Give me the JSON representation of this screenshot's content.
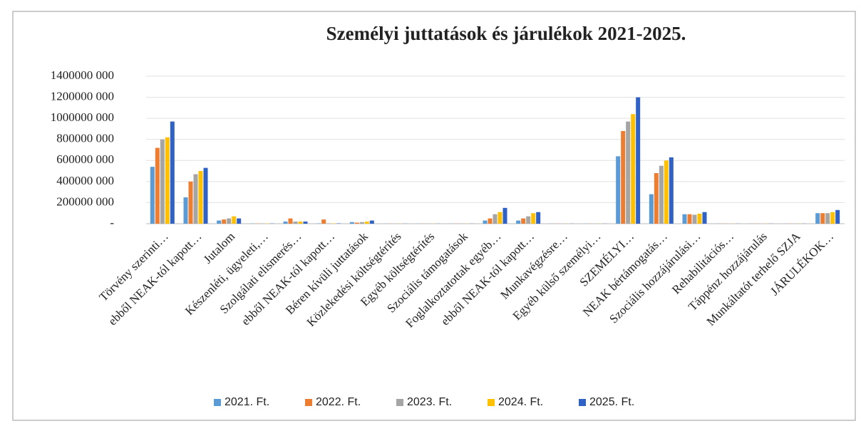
{
  "chart_data": {
    "type": "bar",
    "title": "Személyi juttatások és járulékok 2021-2025.",
    "categories": [
      "Törvény szerinti…",
      "ebből NEAK-tól kapott…",
      "Jutalom",
      "Készenléti, ügyeleti,…",
      "Szolgálati elismerés…",
      "ebből NEAK-tól kapott…",
      "Béren kívüli juttatások",
      "Közlekedési költségtérítés",
      "Egyéb költségtérítés",
      "Szociális támogatások",
      "Foglalkoztatottak egyéb…",
      "ebből NEAK-tól kapott…",
      "Munkavégzésre…",
      "Egyéb külső személyi…",
      "SZEMÉLYI…",
      "NEAK bértámogatás…",
      "Szociális hozzájárulási…",
      "Rehabilitációs…",
      "Táppénz hozzájárulás",
      "Munkáltatót terhelő SZJA",
      "JÁRULÉKOK…"
    ],
    "series": [
      {
        "name": "2021. Ft.",
        "color": "#5b9bd5",
        "values": [
          540000,
          250000,
          30000,
          2000,
          20000,
          3000,
          15000,
          1000,
          1000,
          1000,
          30000,
          30000,
          1000,
          1000,
          640000,
          280000,
          90000,
          1000,
          1000,
          1000,
          100000
        ]
      },
      {
        "name": "2022. Ft.",
        "color": "#ed7d31",
        "values": [
          720000,
          400000,
          40000,
          2000,
          50000,
          40000,
          10000,
          1000,
          1000,
          1000,
          50000,
          50000,
          1000,
          1000,
          880000,
          480000,
          90000,
          1000,
          1000,
          1000,
          100000
        ]
      },
      {
        "name": "2023. Ft.",
        "color": "#a5a5a5",
        "values": [
          800000,
          470000,
          50000,
          2000,
          20000,
          3000,
          15000,
          1000,
          1000,
          1000,
          90000,
          70000,
          1000,
          1000,
          970000,
          550000,
          85000,
          1000,
          1000,
          1000,
          100000
        ]
      },
      {
        "name": "2024. Ft.",
        "color": "#ffc000",
        "values": [
          820000,
          500000,
          70000,
          2000,
          20000,
          3000,
          20000,
          1000,
          1000,
          1000,
          110000,
          100000,
          1000,
          1000,
          1040000,
          600000,
          95000,
          1000,
          1000,
          1000,
          110000
        ]
      },
      {
        "name": "2025. Ft.",
        "color": "#2f62c4",
        "values": [
          970000,
          530000,
          50000,
          2000,
          20000,
          3000,
          30000,
          1000,
          1000,
          1000,
          150000,
          110000,
          1000,
          1000,
          1200000,
          630000,
          110000,
          1000,
          1000,
          1000,
          130000
        ]
      }
    ],
    "ylim": [
      0,
      1400000
    ],
    "yticks": [
      {
        "value": 0,
        "label": "-"
      },
      {
        "value": 200000,
        "label": "200000 000"
      },
      {
        "value": 400000,
        "label": "400000 000"
      },
      {
        "value": 600000,
        "label": "600000 000"
      },
      {
        "value": 800000,
        "label": "800000 000"
      },
      {
        "value": 1000000,
        "label": "1000000 000"
      },
      {
        "value": 1200000,
        "label": "1200000 000"
      },
      {
        "value": 1400000,
        "label": "1400000 000"
      }
    ],
    "grid": true,
    "legend": "bottom"
  }
}
